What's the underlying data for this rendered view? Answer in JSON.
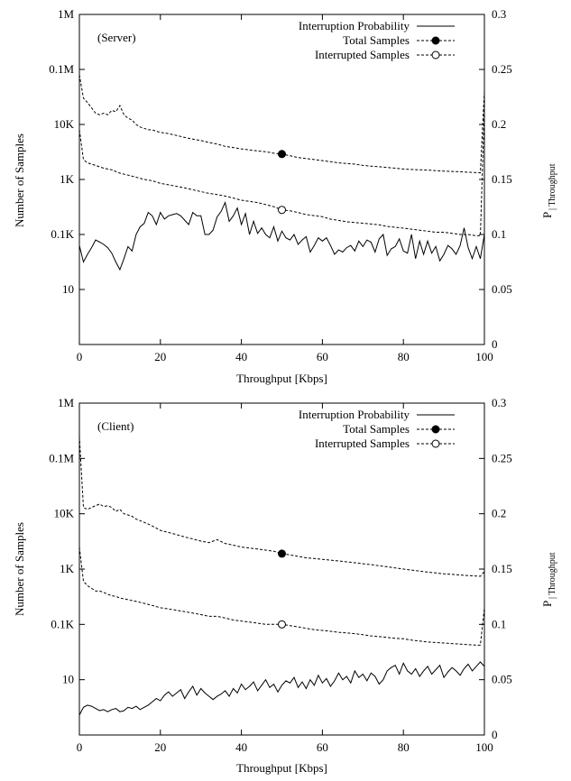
{
  "chart_data": [
    {
      "type": "line",
      "panel_label": "(Server)",
      "xlabel": "Throughput [Kbps]",
      "ylabel_left": "Number of Samples",
      "ylabel_right_main": "P",
      "ylabel_right_sub": "| Throughput",
      "xlim": [
        0,
        100
      ],
      "ylim_left": [
        1,
        1000000
      ],
      "yscale_left": "log",
      "ylim_right": [
        0,
        0.3
      ],
      "x_ticks": [
        "0",
        "20",
        "40",
        "60",
        "80",
        "100"
      ],
      "y_left_ticks": [
        "1M",
        "0.1M",
        "10K",
        "1K",
        "0.1K",
        "10"
      ],
      "y_right_ticks": [
        "0",
        "0.05",
        "0.1",
        "0.15",
        "0.2",
        "0.25",
        "0.3"
      ],
      "legend_position": "top-right",
      "grid": false,
      "series": [
        {
          "name": "Interruption Probability",
          "axis": "right",
          "style": "solid",
          "marker": "none",
          "x": [
            0,
            1,
            2,
            3,
            4,
            5,
            6,
            7,
            8,
            9,
            10,
            11,
            12,
            13,
            14,
            15,
            16,
            17,
            18,
            19,
            20,
            21,
            22,
            23,
            24,
            25,
            26,
            27,
            28,
            29,
            30,
            31,
            32,
            33,
            34,
            35,
            36,
            37,
            38,
            39,
            40,
            41,
            42,
            43,
            44,
            45,
            46,
            47,
            48,
            49,
            50,
            51,
            52,
            53,
            54,
            55,
            56,
            57,
            58,
            59,
            60,
            61,
            62,
            63,
            64,
            65,
            66,
            67,
            68,
            69,
            70,
            71,
            72,
            73,
            74,
            75,
            76,
            77,
            78,
            79,
            80,
            81,
            82,
            83,
            84,
            85,
            86,
            87,
            88,
            89,
            90,
            91,
            92,
            93,
            94,
            95,
            96,
            97,
            98,
            99,
            100
          ],
          "y": [
            0.09,
            0.075,
            0.082,
            0.088,
            0.095,
            0.093,
            0.091,
            0.088,
            0.083,
            0.075,
            0.068,
            0.078,
            0.089,
            0.085,
            0.1,
            0.107,
            0.11,
            0.12,
            0.117,
            0.109,
            0.12,
            0.114,
            0.117,
            0.118,
            0.119,
            0.117,
            0.113,
            0.109,
            0.12,
            0.117,
            0.117,
            0.1,
            0.1,
            0.104,
            0.116,
            0.121,
            0.129,
            0.112,
            0.117,
            0.124,
            0.109,
            0.119,
            0.1,
            0.112,
            0.101,
            0.106,
            0.1,
            0.097,
            0.107,
            0.094,
            0.103,
            0.097,
            0.095,
            0.1,
            0.091,
            0.095,
            0.098,
            0.084,
            0.09,
            0.097,
            0.094,
            0.097,
            0.09,
            0.082,
            0.086,
            0.084,
            0.088,
            0.09,
            0.085,
            0.094,
            0.089,
            0.095,
            0.093,
            0.084,
            0.096,
            0.1,
            0.081,
            0.087,
            0.089,
            0.096,
            0.085,
            0.083,
            0.1,
            0.078,
            0.094,
            0.082,
            0.094,
            0.083,
            0.089,
            0.076,
            0.082,
            0.09,
            0.087,
            0.082,
            0.09,
            0.106,
            0.088,
            0.078,
            0.089,
            0.078,
            0.1
          ]
        },
        {
          "name": "Total Samples",
          "axis": "left",
          "style": "dashed",
          "marker": "filled-circle",
          "marker_x": 50,
          "x": [
            0,
            1,
            2,
            3,
            4,
            5,
            6,
            7,
            8,
            9,
            10,
            11,
            12,
            13,
            14,
            15,
            16,
            17,
            18,
            19,
            20,
            22,
            24,
            26,
            28,
            30,
            32,
            34,
            36,
            38,
            40,
            42,
            44,
            46,
            48,
            50,
            52,
            54,
            56,
            58,
            60,
            62,
            64,
            66,
            68,
            70,
            72,
            74,
            76,
            78,
            80,
            82,
            84,
            86,
            88,
            90,
            92,
            94,
            96,
            98,
            99,
            100
          ],
          "y": [
            80000,
            30000,
            25000,
            20000,
            16000,
            15000,
            16000,
            15000,
            18000,
            17000,
            22000,
            15000,
            13000,
            12000,
            10000,
            9000,
            8500,
            8000,
            8000,
            7500,
            7200,
            6800,
            6300,
            5800,
            5400,
            5100,
            4700,
            4400,
            4000,
            3800,
            3600,
            3450,
            3300,
            3200,
            3000,
            2900,
            2700,
            2500,
            2400,
            2300,
            2200,
            2100,
            2000,
            1950,
            1900,
            1800,
            1750,
            1700,
            1650,
            1600,
            1550,
            1520,
            1500,
            1480,
            1450,
            1420,
            1400,
            1380,
            1350,
            1330,
            1320,
            40000
          ]
        },
        {
          "name": "Interrupted Samples",
          "axis": "left",
          "style": "dashed",
          "marker": "open-circle",
          "marker_x": 50,
          "x": [
            0,
            1,
            2,
            4,
            6,
            8,
            10,
            12,
            14,
            16,
            18,
            20,
            22,
            24,
            26,
            28,
            30,
            32,
            34,
            36,
            38,
            40,
            42,
            44,
            46,
            48,
            50,
            52,
            54,
            56,
            58,
            60,
            62,
            64,
            66,
            68,
            70,
            72,
            74,
            76,
            78,
            80,
            82,
            84,
            86,
            88,
            90,
            92,
            94,
            96,
            98,
            99,
            100
          ],
          "y": [
            8000,
            2300,
            2000,
            1800,
            1600,
            1500,
            1300,
            1200,
            1100,
            1000,
            950,
            850,
            800,
            750,
            700,
            650,
            600,
            560,
            530,
            500,
            460,
            420,
            400,
            380,
            350,
            320,
            280,
            270,
            250,
            230,
            220,
            210,
            190,
            180,
            170,
            165,
            160,
            155,
            150,
            140,
            135,
            130,
            125,
            120,
            115,
            110,
            110,
            105,
            100,
            100,
            95,
            95,
            20000
          ]
        }
      ]
    },
    {
      "type": "line",
      "panel_label": "(Client)",
      "xlabel": "Throughput [Kbps]",
      "ylabel_left": "Number of Samples",
      "ylabel_right_main": "P",
      "ylabel_right_sub": "| Throughput",
      "xlim": [
        0,
        100
      ],
      "ylim_left": [
        1,
        1000000
      ],
      "yscale_left": "log",
      "ylim_right": [
        0,
        0.3
      ],
      "x_ticks": [
        "0",
        "20",
        "40",
        "60",
        "80",
        "100"
      ],
      "y_left_ticks": [
        "1M",
        "0.1M",
        "10K",
        "1K",
        "0.1K",
        "10"
      ],
      "y_right_ticks": [
        "0",
        "0.05",
        "0.1",
        "0.15",
        "0.2",
        "0.25",
        "0.3"
      ],
      "legend_position": "top-right",
      "grid": false,
      "series": [
        {
          "name": "Interruption Probability",
          "axis": "right",
          "style": "solid",
          "marker": "none",
          "x": [
            0,
            1,
            2,
            3,
            4,
            5,
            6,
            7,
            8,
            9,
            10,
            11,
            12,
            13,
            14,
            15,
            16,
            17,
            18,
            19,
            20,
            21,
            22,
            23,
            24,
            25,
            26,
            27,
            28,
            29,
            30,
            31,
            32,
            33,
            34,
            35,
            36,
            37,
            38,
            39,
            40,
            41,
            42,
            43,
            44,
            45,
            46,
            47,
            48,
            49,
            50,
            51,
            52,
            53,
            54,
            55,
            56,
            57,
            58,
            59,
            60,
            61,
            62,
            63,
            64,
            65,
            66,
            67,
            68,
            69,
            70,
            71,
            72,
            73,
            74,
            75,
            76,
            77,
            78,
            79,
            80,
            81,
            82,
            83,
            84,
            85,
            86,
            87,
            88,
            89,
            90,
            91,
            92,
            93,
            94,
            95,
            96,
            97,
            98,
            99,
            100
          ],
          "y": [
            0.018,
            0.025,
            0.027,
            0.026,
            0.024,
            0.022,
            0.023,
            0.021,
            0.023,
            0.024,
            0.021,
            0.022,
            0.025,
            0.024,
            0.026,
            0.023,
            0.025,
            0.027,
            0.03,
            0.033,
            0.031,
            0.036,
            0.039,
            0.035,
            0.038,
            0.041,
            0.033,
            0.039,
            0.044,
            0.036,
            0.042,
            0.038,
            0.035,
            0.032,
            0.035,
            0.037,
            0.04,
            0.035,
            0.042,
            0.038,
            0.046,
            0.041,
            0.044,
            0.048,
            0.04,
            0.045,
            0.05,
            0.043,
            0.046,
            0.039,
            0.045,
            0.049,
            0.047,
            0.052,
            0.043,
            0.048,
            0.042,
            0.05,
            0.045,
            0.054,
            0.047,
            0.051,
            0.044,
            0.049,
            0.056,
            0.05,
            0.053,
            0.047,
            0.058,
            0.052,
            0.055,
            0.049,
            0.056,
            0.053,
            0.046,
            0.05,
            0.058,
            0.061,
            0.063,
            0.055,
            0.065,
            0.058,
            0.055,
            0.06,
            0.053,
            0.058,
            0.062,
            0.055,
            0.059,
            0.063,
            0.052,
            0.057,
            0.061,
            0.058,
            0.054,
            0.06,
            0.064,
            0.058,
            0.062,
            0.066,
            0.062
          ]
        },
        {
          "name": "Total Samples",
          "axis": "left",
          "style": "dashed",
          "marker": "filled-circle",
          "marker_x": 50,
          "x": [
            0,
            1,
            2,
            3,
            4,
            5,
            6,
            7,
            8,
            9,
            10,
            11,
            12,
            13,
            14,
            15,
            16,
            17,
            18,
            19,
            20,
            22,
            24,
            26,
            28,
            30,
            32,
            34,
            36,
            38,
            40,
            42,
            44,
            46,
            48,
            50,
            52,
            54,
            56,
            58,
            60,
            62,
            64,
            66,
            68,
            70,
            72,
            74,
            76,
            78,
            80,
            82,
            84,
            86,
            88,
            90,
            92,
            94,
            96,
            98,
            99,
            100
          ],
          "y": [
            250000,
            13000,
            12000,
            13000,
            14000,
            15000,
            13500,
            14000,
            13000,
            11000,
            12000,
            10000,
            9500,
            9000,
            8000,
            7500,
            7000,
            6500,
            6000,
            5500,
            5000,
            4600,
            4200,
            3800,
            3500,
            3200,
            3000,
            3400,
            2900,
            2700,
            2500,
            2400,
            2300,
            2200,
            2100,
            1900,
            1800,
            1700,
            1600,
            1550,
            1500,
            1450,
            1400,
            1350,
            1300,
            1250,
            1200,
            1150,
            1100,
            1050,
            1000,
            960,
            920,
            880,
            850,
            820,
            800,
            780,
            760,
            750,
            740,
            900
          ]
        },
        {
          "name": "Interrupted Samples",
          "axis": "left",
          "style": "dashed",
          "marker": "open-circle",
          "marker_x": 50,
          "x": [
            0,
            1,
            2,
            3,
            4,
            5,
            6,
            7,
            8,
            9,
            10,
            12,
            14,
            16,
            18,
            20,
            22,
            24,
            26,
            28,
            30,
            32,
            34,
            36,
            38,
            40,
            42,
            44,
            46,
            48,
            50,
            52,
            54,
            56,
            58,
            60,
            62,
            64,
            66,
            68,
            70,
            72,
            74,
            76,
            78,
            80,
            82,
            84,
            86,
            88,
            90,
            92,
            94,
            96,
            98,
            99,
            100
          ],
          "y": [
            2500,
            600,
            500,
            450,
            400,
            400,
            380,
            350,
            330,
            320,
            300,
            280,
            260,
            240,
            220,
            200,
            190,
            180,
            170,
            160,
            150,
            140,
            140,
            130,
            120,
            115,
            110,
            105,
            100,
            100,
            100,
            95,
            90,
            85,
            80,
            78,
            75,
            72,
            70,
            68,
            65,
            62,
            60,
            58,
            56,
            55,
            52,
            50,
            48,
            47,
            46,
            45,
            44,
            43,
            42,
            42,
            200
          ]
        }
      ]
    }
  ]
}
